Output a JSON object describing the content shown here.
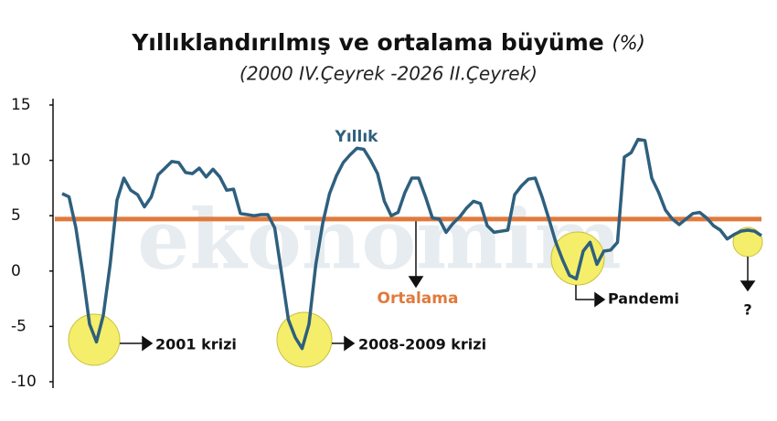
{
  "chart_data": {
    "type": "line",
    "title": "Yıllıklandırılmış ve ortalama büyüme",
    "title_unit": "(%)",
    "subtitle": "(2000 IV.Çeyrek -2026 II.Çeyrek)",
    "watermark": "ekonomim",
    "ylim": [
      -10,
      15
    ],
    "yticks": [
      -10,
      -5,
      0,
      5,
      10,
      15
    ],
    "series": [
      {
        "name": "Yıllık",
        "color": "#2e5f7e",
        "values": [
          7.0,
          6.7,
          3.9,
          -0.2,
          -4.8,
          -6.4,
          -4.0,
          0.6,
          6.4,
          8.4,
          7.3,
          6.9,
          5.8,
          6.7,
          8.7,
          9.3,
          9.9,
          9.8,
          8.9,
          8.8,
          9.3,
          8.5,
          9.2,
          8.5,
          7.3,
          7.4,
          5.2,
          5.1,
          5.0,
          5.1,
          5.1,
          3.9,
          -0.2,
          -4.4,
          -6.0,
          -7.0,
          -4.8,
          0.6,
          4.3,
          7.0,
          8.6,
          9.8,
          10.5,
          11.1,
          11.0,
          10.0,
          8.8,
          6.3,
          5.0,
          5.3,
          7.1,
          8.4,
          8.4,
          6.7,
          4.8,
          4.7,
          3.5,
          4.3,
          4.9,
          5.7,
          6.3,
          6.1,
          4.1,
          3.5,
          3.6,
          3.7,
          6.9,
          7.7,
          8.3,
          8.4,
          6.7,
          4.7,
          2.6,
          1.0,
          -0.4,
          -0.7,
          1.8,
          2.6,
          0.6,
          1.8,
          1.9,
          2.6,
          10.3,
          10.7,
          11.9,
          11.8,
          8.4,
          7.1,
          5.5,
          4.7,
          4.2,
          4.7,
          5.2,
          5.3,
          4.8,
          4.1,
          3.7,
          2.9,
          3.3,
          3.6,
          3.7,
          3.6,
          3.2
        ]
      }
    ],
    "average": {
      "name": "Ortalama",
      "value": 4.7,
      "color": "#e07a3c"
    },
    "annotations": [
      "2001 krizi",
      "2008-2009 krizi",
      "Pandemi",
      "?"
    ]
  }
}
